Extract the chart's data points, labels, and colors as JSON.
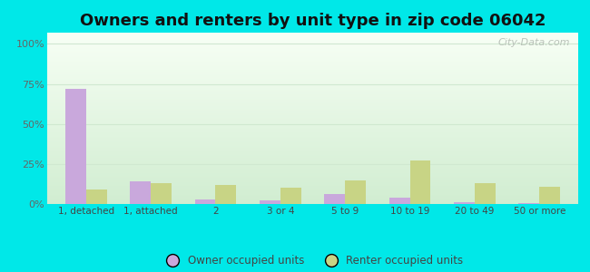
{
  "title": "Owners and renters by unit type in zip code 06042",
  "categories": [
    "1, detached",
    "1, attached",
    "2",
    "3 or 4",
    "5 to 9",
    "10 to 19",
    "20 to 49",
    "50 or more"
  ],
  "owner_values": [
    72,
    14,
    3,
    2,
    6,
    4,
    1,
    0.5
  ],
  "renter_values": [
    9,
    13,
    12,
    10,
    15,
    27,
    13,
    11
  ],
  "owner_color": "#c9a8dc",
  "renter_color": "#c8d485",
  "background_outer": "#00e8e8",
  "yticks": [
    0,
    25,
    50,
    75,
    100
  ],
  "ytick_labels": [
    "0%",
    "25%",
    "50%",
    "75%",
    "100%"
  ],
  "ylim": [
    0,
    107
  ],
  "legend_owner": "Owner occupied units",
  "legend_renter": "Renter occupied units",
  "title_fontsize": 13,
  "watermark": "City-Data.com",
  "grid_color": "#d0e8d0",
  "bg_top": "#f8fef4",
  "bg_bottom": "#d8eed8"
}
